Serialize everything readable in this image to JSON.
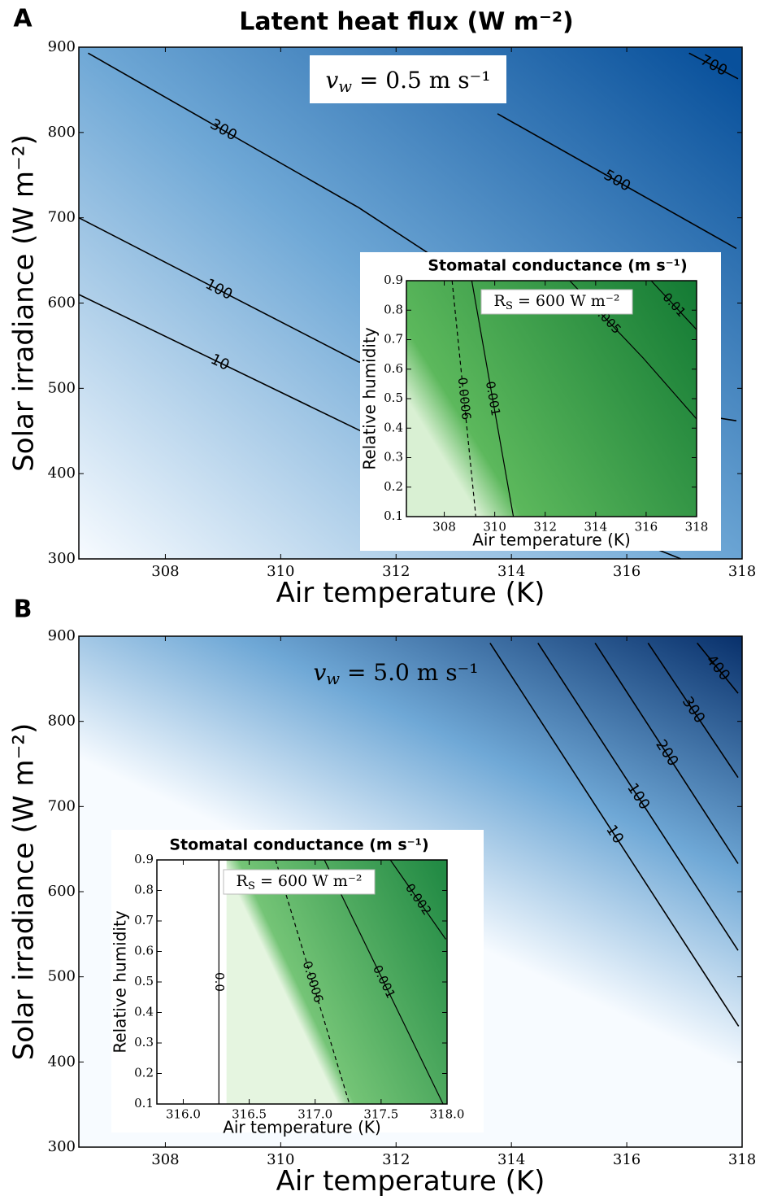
{
  "chart_data": [
    {
      "type": "contour",
      "panel": "A",
      "title": "Latent heat flux (W m⁻²)",
      "xlabel": "Air temperature (K)",
      "ylabel": "Solar irradiance (W m⁻²)",
      "xlim": [
        306.5,
        318
      ],
      "ylim": [
        300,
        900
      ],
      "xticks": [
        308,
        310,
        312,
        314,
        316,
        318
      ],
      "yticks": [
        300,
        400,
        500,
        600,
        700,
        800,
        900
      ],
      "colors": [
        "#f7fbff",
        "#6fa8d6",
        "#08509b"
      ],
      "annotation": {
        "symbol": "v",
        "subscript": "w",
        "text": " = 0.5 m s⁻¹"
      },
      "contours": [
        {
          "level": 10,
          "x": [
            306.5,
            311.39,
            316.94
          ],
          "y": [
            610,
            450,
            300
          ]
        },
        {
          "level": 100,
          "x": [
            306.5,
            311.35,
            317.9
          ],
          "y": [
            700,
            531,
            462
          ]
        },
        {
          "level": 300,
          "x": [
            306.66,
            311.35,
            313.61
          ],
          "y": [
            893,
            712,
            612
          ]
        },
        {
          "level": 500,
          "x": [
            313.76,
            317.9
          ],
          "y": [
            822,
            664
          ]
        },
        {
          "level": 700,
          "x": [
            317.08,
            317.93
          ],
          "y": [
            893,
            863
          ]
        }
      ]
    },
    {
      "type": "contour",
      "title": "Stomatal conductance (m s⁻¹)",
      "xlabel": "Air temperature (K)",
      "ylabel": "Relative humidity",
      "xlim": [
        306.5,
        318
      ],
      "ylim": [
        0.1,
        0.9
      ],
      "xticks": [
        308,
        310,
        312,
        314,
        316,
        318
      ],
      "yticks": [
        0.1,
        0.2,
        0.3,
        0.4,
        0.5,
        0.6,
        0.7,
        0.8,
        0.9
      ],
      "colors": [
        "#d9f0d3",
        "#5cb85c",
        "#137a34"
      ],
      "annotation": {
        "symbol": "R",
        "subscript": "S",
        "text": " = 600 W m⁻²"
      },
      "contours": [
        {
          "level": 0.0006,
          "linestyle": "dashed",
          "x": [
            308.31,
            309.25
          ],
          "y": [
            0.9,
            0.1
          ]
        },
        {
          "level": 0.001,
          "x": [
            309.09,
            310.74
          ],
          "y": [
            0.9,
            0.1
          ]
        },
        {
          "level": 0.005,
          "x": [
            312.97,
            315.88,
            318
          ],
          "y": [
            0.9,
            0.638,
            0.431
          ]
        },
        {
          "level": 0.01,
          "x": [
            316.2,
            318
          ],
          "y": [
            0.9,
            0.734
          ]
        }
      ]
    },
    {
      "type": "contour",
      "panel": "B",
      "xlabel": "Air temperature (K)",
      "ylabel": "Solar irradiance (W m⁻²)",
      "xlim": [
        306.5,
        318
      ],
      "ylim": [
        300,
        900
      ],
      "xticks": [
        308,
        310,
        312,
        314,
        316,
        318
      ],
      "yticks": [
        300,
        400,
        500,
        600,
        700,
        800,
        900
      ],
      "colors": [
        "#f7fbff",
        "#6fa8d6",
        "#08306b"
      ],
      "annotation": {
        "symbol": "v",
        "subscript": "w",
        "text": " = 5.0 m s⁻¹"
      },
      "contours": [
        {
          "level": 10,
          "x": [
            313.63,
            317.94
          ],
          "y": [
            892,
            442
          ]
        },
        {
          "level": 100,
          "x": [
            314.46,
            317.93
          ],
          "y": [
            892,
            531
          ]
        },
        {
          "level": 200,
          "x": [
            315.45,
            317.93
          ],
          "y": [
            892,
            633
          ]
        },
        {
          "level": 300,
          "x": [
            316.37,
            317.93
          ],
          "y": [
            892,
            734
          ]
        },
        {
          "level": 400,
          "x": [
            317.22,
            317.93
          ],
          "y": [
            892,
            833
          ]
        }
      ]
    },
    {
      "type": "contour",
      "title": "Stomatal conductance (m s⁻¹)",
      "xlabel": "Air temperature (K)",
      "ylabel": "Relative humidity",
      "xlim": [
        315.8,
        318
      ],
      "ylim": [
        0.1,
        0.9
      ],
      "xticks": [
        {
          "value": 316,
          "label": "316.0"
        },
        316.5,
        {
          "value": 317,
          "label": "317.0"
        },
        317.5,
        {
          "value": 318,
          "label": "318.0"
        }
      ],
      "yticks": [
        0.1,
        0.2,
        0.3,
        0.4,
        0.5,
        0.6,
        0.7,
        0.8,
        0.9
      ],
      "colors": [
        "#e5f5e0",
        "#74c476",
        "#238b45"
      ],
      "annotation": {
        "symbol": "R",
        "subscript": "S",
        "text": " = 600 W m⁻²"
      },
      "contours": [
        {
          "level": {
            "value": 0,
            "label": "0.0"
          },
          "x": [
            316.27,
            316.27
          ],
          "y": [
            0.9,
            0.1
          ]
        },
        {
          "level": 0.0006,
          "linestyle": "dashed",
          "x": [
            316.7,
            317.26
          ],
          "y": [
            0.9,
            0.1
          ]
        },
        {
          "level": 0.001,
          "x": [
            317.07,
            317.97
          ],
          "y": [
            0.9,
            0.1
          ]
        },
        {
          "level": 0.002,
          "x": [
            317.57,
            317.99
          ],
          "y": [
            0.9,
            0.64
          ]
        }
      ]
    }
  ]
}
